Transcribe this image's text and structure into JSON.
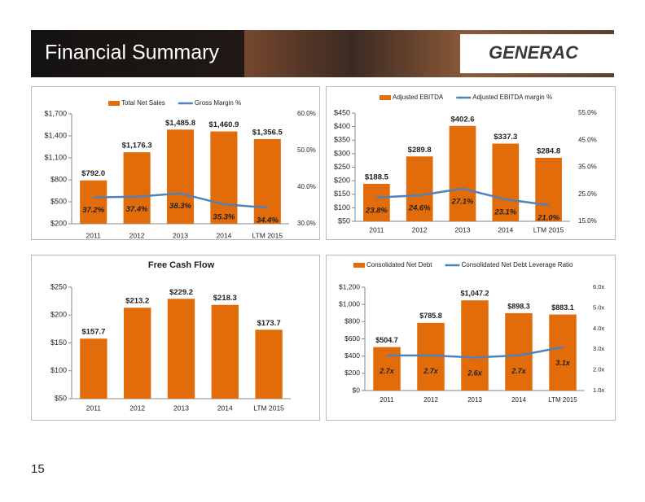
{
  "slide": {
    "title": "Financial Summary",
    "logo": "GENERAC",
    "page_number": "15"
  },
  "chart_data": [
    {
      "type": "combo",
      "legend": "top",
      "categories": [
        "2011",
        "2012",
        "2013",
        "2014",
        "LTM 2015"
      ],
      "series": [
        {
          "name": "Total Net Sales",
          "type": "bar",
          "color": "#e36c0a",
          "values": [
            792.0,
            1176.3,
            1485.8,
            1460.9,
            1356.5
          ],
          "value_labels": [
            "$792.0",
            "$1,176.3",
            "$1,485.8",
            "$1,460.9",
            "$1,356.5"
          ]
        },
        {
          "name": "Gross Margin %",
          "type": "line",
          "axis": "y2",
          "color": "#4f81bd",
          "values": [
            37.2,
            37.4,
            38.3,
            35.3,
            34.4
          ],
          "value_labels": [
            "37.2%",
            "37.4%",
            "38.3%",
            "35.3%",
            "34.4%"
          ]
        }
      ],
      "ylim": [
        200,
        1700
      ],
      "yticks": [
        {
          "value": 200,
          "label": "$200"
        },
        {
          "value": 500,
          "label": "$500"
        },
        {
          "value": 800,
          "label": "$800"
        },
        {
          "value": 1100,
          "label": "$1,100"
        },
        {
          "value": 1400,
          "label": "$1,400"
        },
        {
          "value": 1700,
          "label": "$1,700"
        }
      ],
      "y2lim": [
        30,
        60
      ],
      "y2ticks": [
        {
          "value": 30,
          "label": "30.0%"
        },
        {
          "value": 40,
          "label": "40.0%"
        },
        {
          "value": 50,
          "label": "50.0%"
        },
        {
          "value": 60,
          "label": "60.0%"
        }
      ]
    },
    {
      "type": "combo",
      "legend": "top",
      "categories": [
        "2011",
        "2012",
        "2013",
        "2014",
        "LTM 2015"
      ],
      "series": [
        {
          "name": "Adjusted EBITDA",
          "type": "bar",
          "color": "#e36c0a",
          "values": [
            188.5,
            289.8,
            402.6,
            337.3,
            284.8
          ],
          "value_labels": [
            "$188.5",
            "$289.8",
            "$402.6",
            "$337.3",
            "$284.8"
          ]
        },
        {
          "name": "Adjusted EBITDA margin %",
          "type": "line",
          "axis": "y2",
          "color": "#4f81bd",
          "values": [
            23.8,
            24.6,
            27.1,
            23.1,
            21.0
          ],
          "value_labels": [
            "23.8%",
            "24.6%",
            "27.1%",
            "23.1%",
            "21.0%"
          ]
        }
      ],
      "ylim": [
        50,
        450
      ],
      "yticks": [
        {
          "value": 50,
          "label": "$50"
        },
        {
          "value": 100,
          "label": "$100"
        },
        {
          "value": 150,
          "label": "$150"
        },
        {
          "value": 200,
          "label": "$200"
        },
        {
          "value": 250,
          "label": "$250"
        },
        {
          "value": 300,
          "label": "$300"
        },
        {
          "value": 350,
          "label": "$350"
        },
        {
          "value": 400,
          "label": "$400"
        },
        {
          "value": 450,
          "label": "$450"
        }
      ],
      "y2lim": [
        15,
        55
      ],
      "y2ticks": [
        {
          "value": 15,
          "label": "15.0%"
        },
        {
          "value": 25,
          "label": "25.0%"
        },
        {
          "value": 35,
          "label": "35.0%"
        },
        {
          "value": 45,
          "label": "45.0%"
        },
        {
          "value": 55,
          "label": "55.0%"
        }
      ]
    },
    {
      "type": "combo",
      "title": "Free Cash Flow",
      "categories": [
        "2011",
        "2012",
        "2013",
        "2014",
        "LTM 2015"
      ],
      "series": [
        {
          "type": "bar",
          "color": "#e36c0a",
          "values": [
            157.7,
            213.2,
            229.2,
            218.3,
            173.7
          ],
          "value_labels": [
            "$157.7",
            "$213.2",
            "$229.2",
            "$218.3",
            "$173.7"
          ]
        }
      ],
      "ylim": [
        50,
        250
      ],
      "yticks": [
        {
          "value": 50,
          "label": "$50"
        },
        {
          "value": 100,
          "label": "$100"
        },
        {
          "value": 150,
          "label": "$150"
        },
        {
          "value": 200,
          "label": "$200"
        },
        {
          "value": 250,
          "label": "$250"
        }
      ]
    },
    {
      "type": "combo",
      "legend": "top",
      "categories": [
        "2011",
        "2012",
        "2013",
        "2014",
        "LTM 2015"
      ],
      "series": [
        {
          "name": "Consolidated Net Debt",
          "type": "bar",
          "color": "#e36c0a",
          "values": [
            504.7,
            785.8,
            1047.2,
            898.3,
            883.1
          ],
          "value_labels": [
            "$504.7",
            "$785.8",
            "$1,047.2",
            "$898.3",
            "$883.1"
          ]
        },
        {
          "name": "Consolidated Net Debt Leverage Ratio",
          "type": "line",
          "axis": "y2",
          "color": "#4f81bd",
          "values": [
            2.7,
            2.7,
            2.6,
            2.7,
            3.1
          ],
          "value_labels": [
            "2.7x",
            "2.7x",
            "2.6x",
            "2.7x",
            "3.1x"
          ]
        }
      ],
      "ylim": [
        0,
        1200
      ],
      "yticks": [
        {
          "value": 0,
          "label": "$0"
        },
        {
          "value": 200,
          "label": "$200"
        },
        {
          "value": 400,
          "label": "$400"
        },
        {
          "value": 600,
          "label": "$600"
        },
        {
          "value": 800,
          "label": "$800"
        },
        {
          "value": 1000,
          "label": "$1,000"
        },
        {
          "value": 1200,
          "label": "$1,200"
        }
      ],
      "y2lim": [
        1,
        6
      ],
      "y2ticks": [
        {
          "value": 1,
          "label": "1.0x"
        },
        {
          "value": 2,
          "label": "2.0x"
        },
        {
          "value": 3,
          "label": "3.0x"
        },
        {
          "value": 4,
          "label": "4.0x"
        },
        {
          "value": 5,
          "label": "5.0x"
        },
        {
          "value": 6,
          "label": "6.0x"
        }
      ]
    }
  ]
}
